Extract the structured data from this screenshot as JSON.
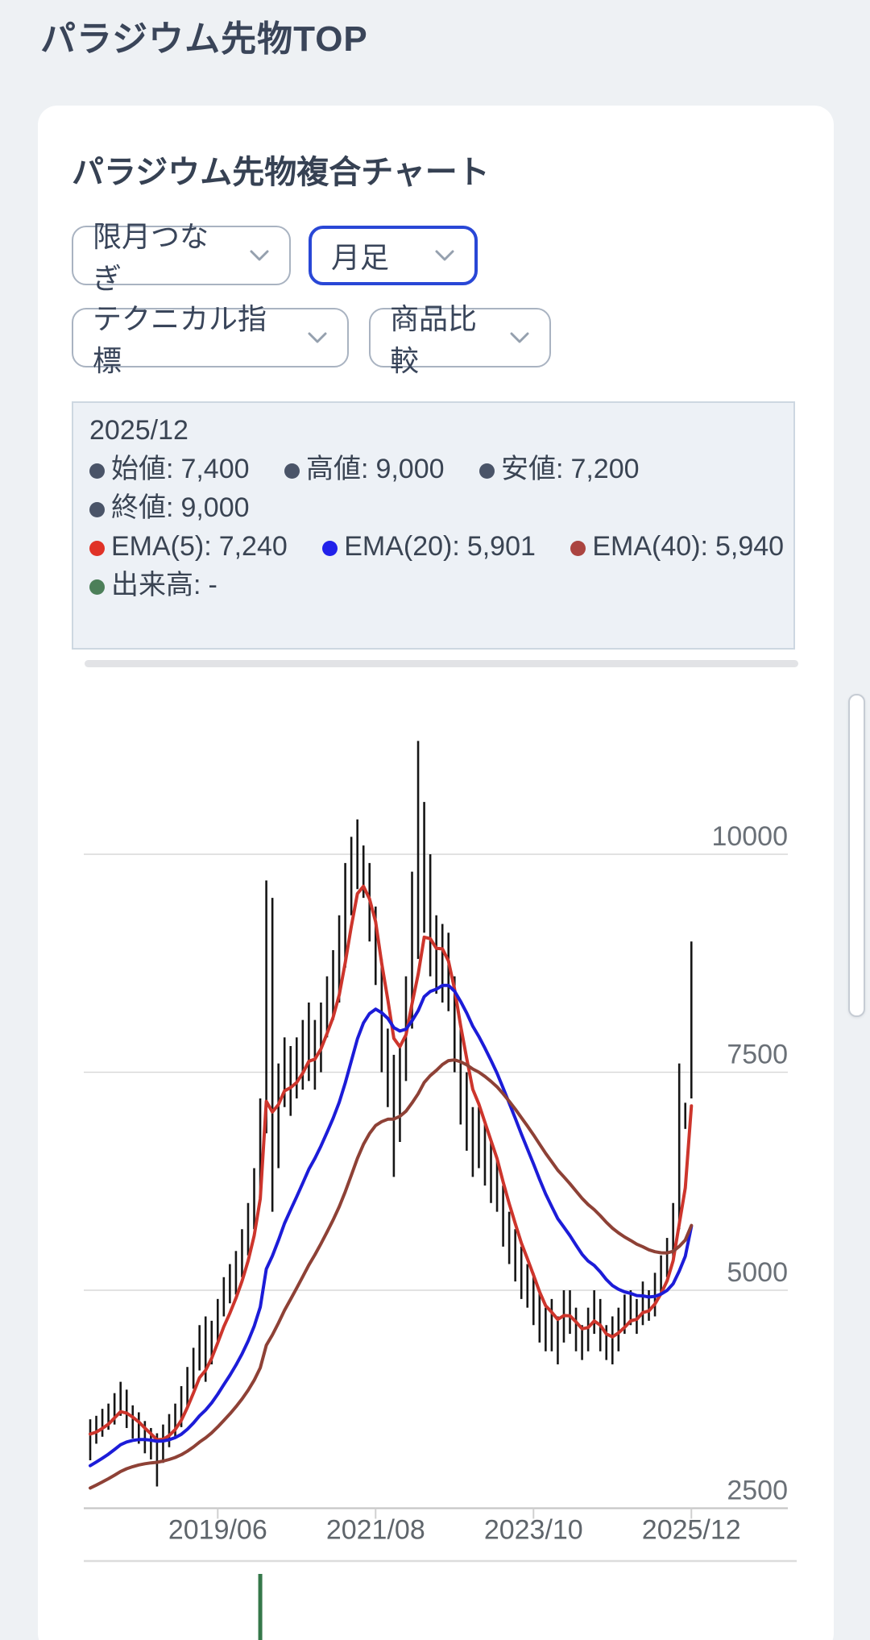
{
  "page_title": "パラジウム先物TOP",
  "chart_title": "パラジウム先物複合チャート",
  "controls": {
    "contract_select": {
      "label": "限月つなぎ"
    },
    "timeframe_select": {
      "label": "月足"
    },
    "technical_select": {
      "label": "テクニカル指標"
    },
    "compare_select": {
      "label": "商品比較"
    }
  },
  "colors": {
    "dot_dark": "#4a5468",
    "dot_ema5": "#e03227",
    "dot_ema20": "#2121ea",
    "dot_ema40": "#ab4440",
    "dot_volume": "#4c7f59",
    "accent_blue": "#2947d6"
  },
  "info": {
    "date": "2025/12",
    "open": {
      "label": "始値:",
      "value": "7,400"
    },
    "high": {
      "label": "高値:",
      "value": "9,000"
    },
    "low": {
      "label": "安値:",
      "value": "7,200"
    },
    "close": {
      "label": "終値:",
      "value": "9,000"
    },
    "ema5": {
      "label": "EMA(5):",
      "value": "7,240"
    },
    "ema20": {
      "label": "EMA(20):",
      "value": "5,901"
    },
    "ema40": {
      "label": "EMA(40):",
      "value": "5,940"
    },
    "volume": {
      "label": "出来高:",
      "value": "-"
    }
  },
  "chart_data": {
    "type": "candlestick",
    "title": "パラジウム先物複合チャート",
    "start_month": "2017/09",
    "months": 100,
    "x_tick_labels": [
      "2019/06",
      "2021/08",
      "2023/10",
      "2025/12"
    ],
    "x_tick_indices": [
      21,
      47,
      73,
      99
    ],
    "y_ticks": [
      10000,
      7500,
      5000,
      2500
    ],
    "ylim": [
      2500,
      11500
    ],
    "grid": true,
    "candle_color": "#161616",
    "grid_color": "#d9d9d9",
    "axis_color": "#c6c6c6",
    "tick_label_color": "#6a7077",
    "candles": {
      "o": [
        3300,
        3350,
        3420,
        3500,
        3560,
        3680,
        3750,
        3560,
        3450,
        3380,
        3280,
        3220,
        3150,
        3300,
        3420,
        3540,
        3720,
        3950,
        4150,
        4350,
        4250,
        4500,
        4750,
        4950,
        5050,
        5250,
        5500,
        5800,
        6200,
        6900,
        9400,
        6800,
        7300,
        7600,
        7400,
        7500,
        7700,
        7900,
        7700,
        8000,
        8300,
        8500,
        8900,
        9500,
        10000,
        10300,
        9800,
        9200,
        8700,
        7800,
        7500,
        7000,
        7600,
        8200,
        9000,
        9300,
        9900,
        9000,
        8700,
        8900,
        8500,
        7800,
        7200,
        6900,
        6600,
        6800,
        6500,
        6300,
        6100,
        5700,
        5500,
        5300,
        5100,
        5000,
        4800,
        4600,
        4500,
        4600,
        4500,
        4800,
        4700,
        4500,
        4400,
        4600,
        4800,
        4500,
        4300,
        4400,
        4600,
        4700,
        4800,
        4700,
        4900,
        4800,
        5000,
        5200,
        5400,
        5800,
        6900,
        7400
      ],
      "h": [
        3520,
        3560,
        3640,
        3700,
        3820,
        3950,
        3860,
        3680,
        3600,
        3500,
        3420,
        3360,
        3460,
        3580,
        3700,
        3900,
        4120,
        4340,
        4600,
        4700,
        4650,
        4900,
        5150,
        5300,
        5450,
        5700,
        6000,
        6400,
        7200,
        9700,
        9500,
        7600,
        7900,
        7800,
        7900,
        8100,
        8300,
        8100,
        8300,
        8600,
        8900,
        9300,
        9900,
        10200,
        10400,
        10100,
        9900,
        9400,
        8800,
        8000,
        7700,
        7800,
        8600,
        9800,
        11300,
        10600,
        10000,
        9300,
        9200,
        9100,
        8600,
        8000,
        7500,
        7100,
        7100,
        6900,
        6700,
        6500,
        6200,
        5900,
        5700,
        5500,
        5300,
        5200,
        5000,
        4800,
        4900,
        4700,
        5000,
        5000,
        4800,
        4600,
        4800,
        5000,
        4900,
        4600,
        4700,
        4800,
        4950,
        5000,
        4900,
        5100,
        5000,
        5200,
        5400,
        5600,
        6000,
        7600,
        7150,
        9000
      ],
      "l": [
        3050,
        3240,
        3320,
        3400,
        3460,
        3560,
        3420,
        3300,
        3240,
        3130,
        3060,
        2750,
        3020,
        3200,
        3320,
        3430,
        3650,
        3870,
        4080,
        3950,
        4150,
        4400,
        4700,
        4850,
        4950,
        5150,
        5400,
        5700,
        6100,
        6800,
        5900,
        6400,
        7100,
        7000,
        7200,
        7300,
        7400,
        7300,
        7500,
        7900,
        8100,
        8300,
        8700,
        9300,
        9600,
        9500,
        9000,
        8500,
        7500,
        7100,
        6300,
        6700,
        7400,
        8000,
        8800,
        9100,
        8600,
        8400,
        8300,
        8200,
        7500,
        6900,
        6600,
        6300,
        6400,
        6200,
        6000,
        5900,
        5500,
        5300,
        5100,
        4900,
        4800,
        4600,
        4400,
        4300,
        4300,
        4150,
        4400,
        4500,
        4300,
        4200,
        4300,
        4500,
        4300,
        4200,
        4150,
        4300,
        4500,
        4600,
        4500,
        4600,
        4650,
        4700,
        4950,
        5150,
        5350,
        5700,
        6850,
        7200
      ],
      "c": [
        3350,
        3420,
        3500,
        3560,
        3680,
        3750,
        3560,
        3450,
        3380,
        3280,
        3220,
        3150,
        3300,
        3420,
        3540,
        3720,
        3950,
        4150,
        4350,
        4250,
        4500,
        4750,
        4950,
        5050,
        5250,
        5500,
        5800,
        6200,
        6900,
        9400,
        6800,
        7300,
        7600,
        7400,
        7500,
        7700,
        7900,
        7700,
        8000,
        8300,
        8500,
        8900,
        9500,
        10000,
        10300,
        9800,
        9200,
        8700,
        7800,
        7500,
        7000,
        7600,
        8200,
        9000,
        9300,
        9900,
        9000,
        8700,
        8900,
        8500,
        7800,
        7200,
        6900,
        6600,
        6800,
        6500,
        6300,
        6100,
        5700,
        5500,
        5300,
        5100,
        5000,
        4800,
        4600,
        4500,
        4600,
        4500,
        4800,
        4700,
        4500,
        4400,
        4600,
        4800,
        4500,
        4300,
        4400,
        4600,
        4700,
        4800,
        4700,
        4900,
        4800,
        5000,
        5200,
        5400,
        5800,
        6600,
        7000,
        9000
      ]
    },
    "series": [
      {
        "name": "EMA(5)",
        "period": 5,
        "seed": 3350,
        "color": "#cd352c",
        "last_value": 7240
      },
      {
        "name": "EMA(20)",
        "period": 20,
        "seed": 2950,
        "color": "#1c1cd8",
        "last_value": 5901
      },
      {
        "name": "EMA(40)",
        "period": 40,
        "seed": 2700,
        "color": "#8e4136",
        "last_value": 5940
      }
    ],
    "volume": {
      "bar_index": 28,
      "color": "#35784a"
    },
    "legend_position": "none"
  }
}
